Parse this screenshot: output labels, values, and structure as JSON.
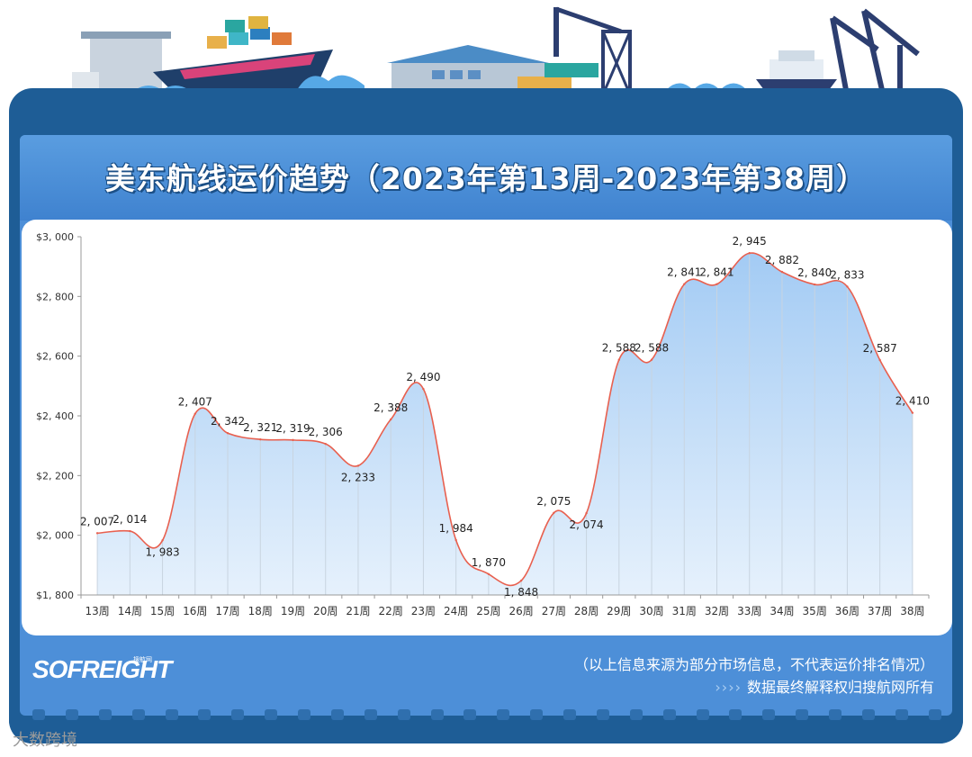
{
  "header": {
    "title": "美东航线运价趋势（2023年第13周-2023年第38周）"
  },
  "chart_data": {
    "type": "area",
    "title": "美东航线运价趋势（2023年第13周-2023年第38周）",
    "xlabel": "",
    "ylabel": "",
    "categories": [
      "13周",
      "14周",
      "15周",
      "16周",
      "17周",
      "18周",
      "19周",
      "20周",
      "21周",
      "22周",
      "23周",
      "24周",
      "25周",
      "26周",
      "27周",
      "28周",
      "29周",
      "30周",
      "31周",
      "32周",
      "33周",
      "34周",
      "35周",
      "36周",
      "37周",
      "38周"
    ],
    "values": [
      2007,
      2014,
      1983,
      2407,
      2342,
      2321,
      2319,
      2306,
      2233,
      2388,
      2490,
      1984,
      1870,
      1848,
      2075,
      2074,
      2588,
      2588,
      2841,
      2841,
      2945,
      2882,
      2840,
      2833,
      2587,
      2410
    ],
    "data_labels": [
      "2, 007",
      "2, 014",
      "1, 983",
      "2, 407",
      "2, 342",
      "2, 321",
      "2, 319",
      "2, 306",
      "2, 233",
      "2, 388",
      "2, 490",
      "1, 984",
      "1, 870",
      "1, 848",
      "2, 075",
      "2, 074",
      "2, 588",
      "2, 588",
      "2, 841",
      "2, 841",
      "2, 945",
      "2, 882",
      "2, 840",
      "2, 833",
      "2, 587",
      "2, 410"
    ],
    "y_ticks": [
      1800,
      2000,
      2200,
      2400,
      2600,
      2800,
      3000
    ],
    "y_tick_labels": [
      "$1, 800",
      "$2, 000",
      "$2, 200",
      "$2, 400",
      "$2, 600",
      "$2, 800",
      "$3, 000"
    ],
    "ylim": [
      1800,
      3000
    ],
    "grid": "vertical lines at each category",
    "colors": {
      "line": "#e8604f",
      "fill_top": "#a9cff5",
      "fill_bottom": "#e4f0fc",
      "gridline": "#c8d4e0"
    }
  },
  "footer": {
    "brand": "SOFREIGHT",
    "brand_sub": "搜航网",
    "note_line1": "（以上信息来源为部分市场信息，不代表运价排名情况）",
    "note_arrows": "››››",
    "note_line2": "数据最终解释权归搜航网所有",
    "watermark": "大数跨境"
  }
}
